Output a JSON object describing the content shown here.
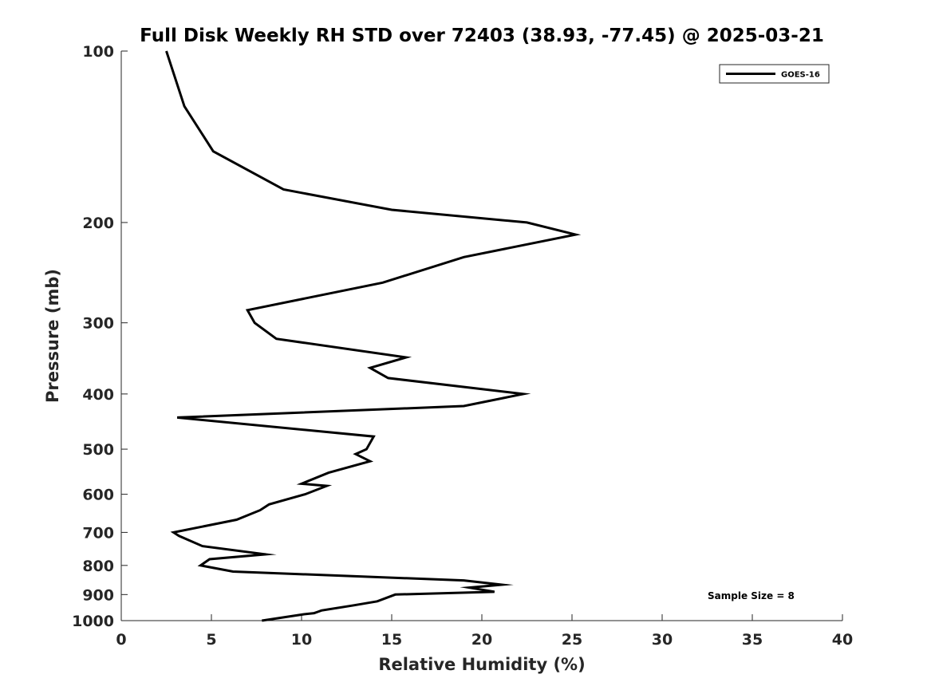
{
  "chart_data": {
    "type": "line",
    "title": "Full Disk Weekly RH STD over 72403 (38.93, -77.45) @ 2025-03-21",
    "xlabel": "Relative Humidity (%)",
    "ylabel": "Pressure (mb)",
    "xlim": [
      0,
      40
    ],
    "ylim": [
      100,
      1000
    ],
    "y_scale": "log",
    "y_reversed": true,
    "x_ticks": [
      "0",
      "5",
      "10",
      "15",
      "20",
      "25",
      "30",
      "35",
      "40"
    ],
    "y_ticks": [
      "100",
      "200",
      "300",
      "400",
      "500",
      "600",
      "700",
      "800",
      "900",
      "1000"
    ],
    "grid": false,
    "legend_position": "top-right",
    "series": [
      {
        "name": "GOES-16",
        "color": "#000000",
        "points": [
          [
            2.5,
            100
          ],
          [
            3.5,
            125
          ],
          [
            5.1,
            150
          ],
          [
            9.0,
            175
          ],
          [
            15.0,
            190
          ],
          [
            22.5,
            200
          ],
          [
            25.2,
            210
          ],
          [
            19.0,
            230
          ],
          [
            14.5,
            255
          ],
          [
            7.0,
            285
          ],
          [
            7.4,
            300
          ],
          [
            8.6,
            320
          ],
          [
            15.8,
            345
          ],
          [
            13.8,
            360
          ],
          [
            14.8,
            375
          ],
          [
            22.3,
            400
          ],
          [
            19.0,
            420
          ],
          [
            3.1,
            440
          ],
          [
            14.0,
            475
          ],
          [
            13.6,
            500
          ],
          [
            13.0,
            510
          ],
          [
            13.8,
            525
          ],
          [
            11.5,
            550
          ],
          [
            10.0,
            575
          ],
          [
            11.4,
            580
          ],
          [
            10.2,
            600
          ],
          [
            8.2,
            625
          ],
          [
            7.7,
            640
          ],
          [
            6.4,
            665
          ],
          [
            2.9,
            700
          ],
          [
            3.2,
            710
          ],
          [
            4.5,
            740
          ],
          [
            8.0,
            765
          ],
          [
            4.9,
            780
          ],
          [
            4.4,
            800
          ],
          [
            6.2,
            820
          ],
          [
            19.0,
            850
          ],
          [
            21.1,
            865
          ],
          [
            19.3,
            875
          ],
          [
            20.7,
            890
          ],
          [
            15.2,
            900
          ],
          [
            14.2,
            925
          ],
          [
            12.9,
            940
          ],
          [
            11.1,
            960
          ],
          [
            10.9,
            965
          ],
          [
            10.7,
            970
          ],
          [
            10.1,
            975
          ],
          [
            7.8,
            1000
          ]
        ]
      }
    ],
    "annotations": [
      "Sample Size = 8"
    ]
  }
}
